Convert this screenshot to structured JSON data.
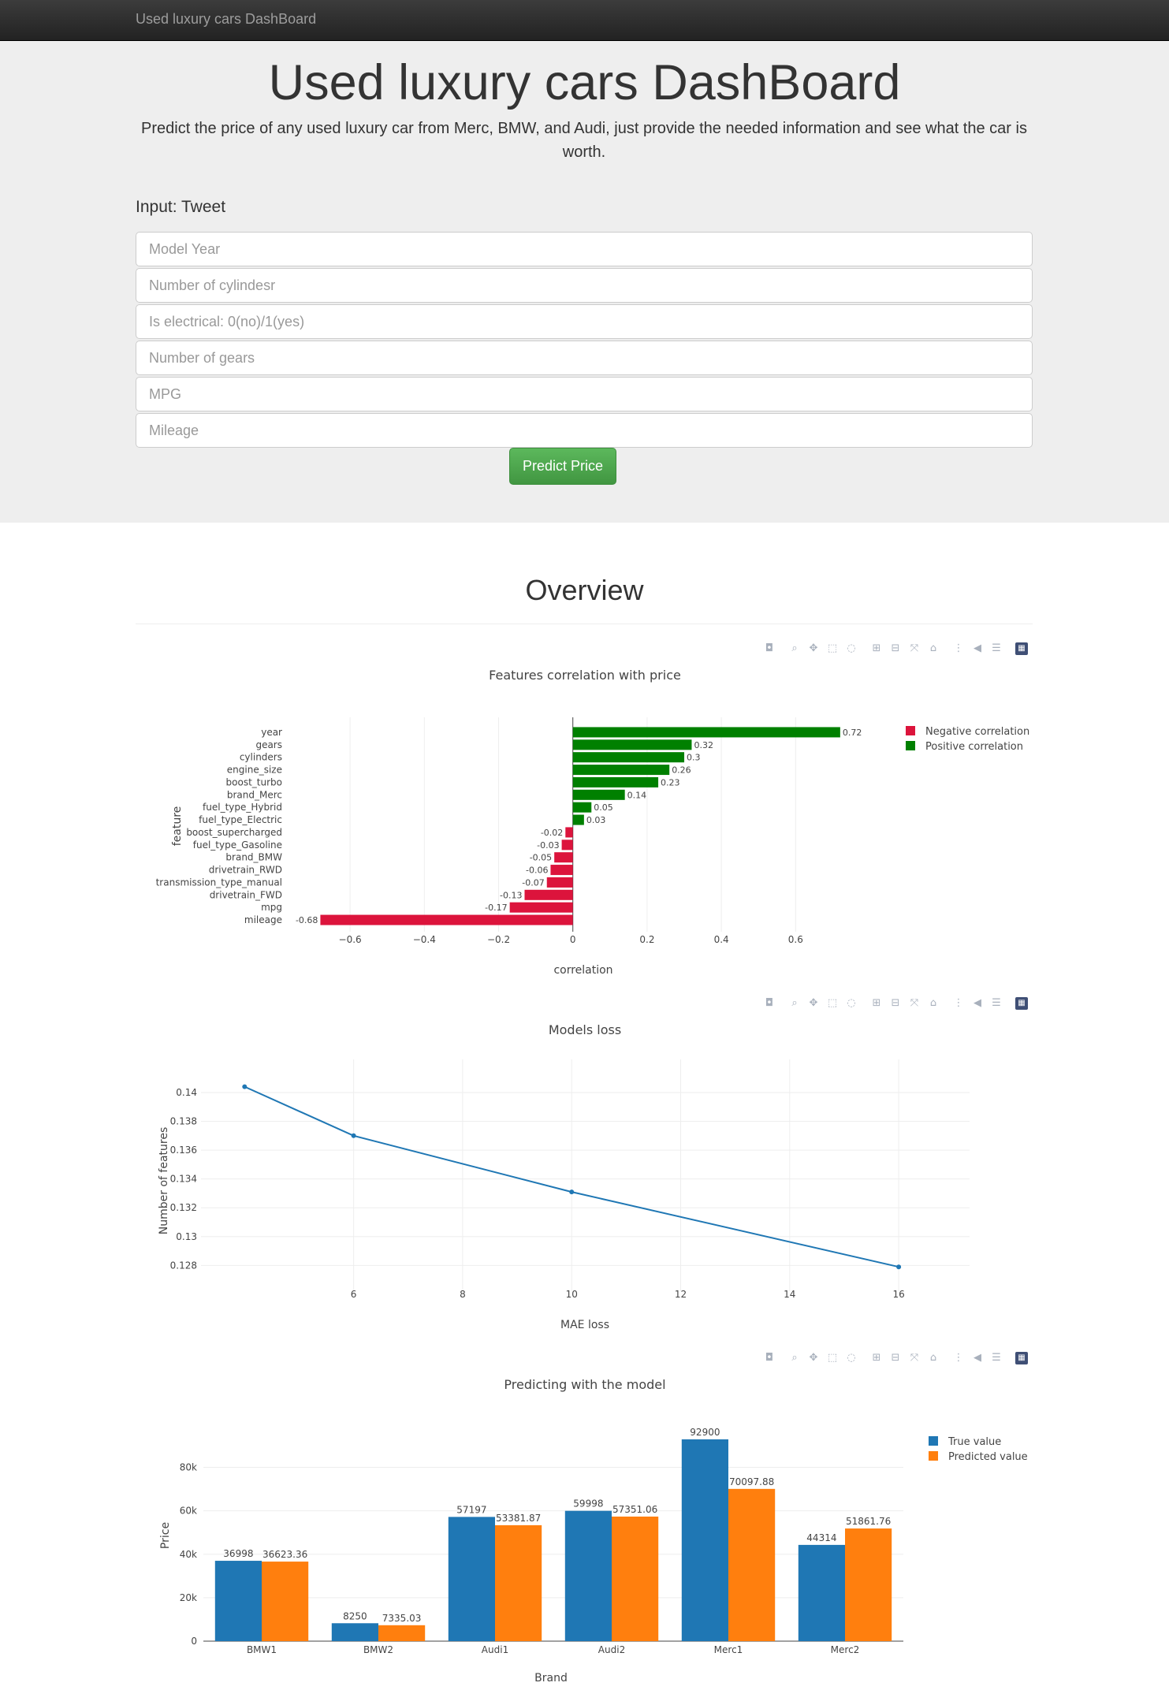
{
  "navbar": {
    "brand": "Used luxury cars DashBoard"
  },
  "header": {
    "title": "Used luxury cars DashBoard",
    "lead": "Predict the price of any used luxury car from Merc, BMW, and Audi, just provide the needed information and see what the car is worth."
  },
  "form": {
    "title": "Input: Tweet",
    "fields": [
      {
        "placeholder": "Model Year",
        "value": ""
      },
      {
        "placeholder": "Number of cylindesr",
        "value": ""
      },
      {
        "placeholder": "Is electrical: 0(no)/1(yes)",
        "value": ""
      },
      {
        "placeholder": "Number of gears",
        "value": ""
      },
      {
        "placeholder": "MPG",
        "value": ""
      },
      {
        "placeholder": "Mileage",
        "value": ""
      }
    ],
    "submit_label": "Predict Price"
  },
  "overview": {
    "title": "Overview"
  },
  "modebar_icons": [
    "camera-icon",
    "zoom-icon",
    "pan-icon",
    "box-select-icon",
    "lasso-icon",
    "zoom-in-icon",
    "zoom-out-icon",
    "autoscale-icon",
    "reset-axes-icon",
    "spike-lines-icon",
    "hover-closest-icon",
    "hover-compare-icon",
    "plotly-logo-icon"
  ],
  "colors": {
    "negative": "#dc143c",
    "positive": "#008000",
    "line": "#1f77b4",
    "true_value": "#1f77b4",
    "predicted_value": "#ff7f0e"
  },
  "chart_data": [
    {
      "type": "bar",
      "orientation": "horizontal",
      "title": "Features correlation with price",
      "xlabel": "correlation",
      "ylabel": "feature",
      "xlim": [
        -0.7,
        0.75
      ],
      "xticks": [
        "−0.6",
        "−0.4",
        "−0.2",
        "0",
        "0.2",
        "0.4",
        "0.6"
      ],
      "xtick_values": [
        -0.6,
        -0.4,
        -0.2,
        0,
        0.2,
        0.4,
        0.6
      ],
      "categories": [
        "year",
        "gears",
        "cylinders",
        "engine_size",
        "boost_turbo",
        "brand_Merc",
        "fuel_type_Hybrid",
        "fuel_type_Electric",
        "boost_supercharged",
        "fuel_type_Gasoline",
        "brand_BMW",
        "drivetrain_RWD",
        "transmission_type_manual",
        "drivetrain_FWD",
        "mpg",
        "mileage"
      ],
      "values": [
        0.72,
        0.32,
        0.3,
        0.26,
        0.23,
        0.14,
        0.05,
        0.03,
        -0.02,
        -0.03,
        -0.05,
        -0.06,
        -0.07,
        -0.13,
        -0.17,
        -0.68
      ],
      "labels": [
        "0.72",
        "0.32",
        "0.3",
        "0.26",
        "0.23",
        "0.14",
        "0.05",
        "0.03",
        "-0.02",
        "-0.03",
        "-0.05",
        "-0.06",
        "-0.07",
        "-0.13",
        "-0.17",
        "-0.68"
      ],
      "legend": [
        "Negative correlation",
        "Positive correlation"
      ],
      "legend_position": "top-right",
      "grid": true
    },
    {
      "type": "line",
      "title": "Models loss",
      "xlabel": "MAE loss",
      "ylabel": "Number of features",
      "x": [
        4,
        6,
        10,
        16
      ],
      "y": [
        0.1404,
        0.137,
        0.1331,
        0.1279
      ],
      "xlim": [
        3.2,
        17.3
      ],
      "ylim": [
        0.1272,
        0.1412
      ],
      "xticks": [
        "6",
        "8",
        "10",
        "12",
        "14",
        "16"
      ],
      "xtick_values": [
        6,
        8,
        10,
        12,
        14,
        16
      ],
      "yticks": [
        "0.128",
        "0.13",
        "0.132",
        "0.134",
        "0.136",
        "0.138",
        "0.14"
      ],
      "ytick_values": [
        0.128,
        0.13,
        0.132,
        0.134,
        0.136,
        0.138,
        0.14
      ],
      "grid": true
    },
    {
      "type": "bar",
      "title": "Predicting with the model",
      "xlabel": "Brand",
      "ylabel": "Price",
      "categories": [
        "BMW1",
        "BMW2",
        "Audi1",
        "Audi2",
        "Merc1",
        "Merc2"
      ],
      "series": [
        {
          "name": "True value",
          "values": [
            36998,
            8250,
            57197,
            59998,
            92900,
            44314
          ],
          "labels": [
            "36998",
            "8250",
            "57197",
            "59998",
            "92900",
            "44314"
          ]
        },
        {
          "name": "Predicted value",
          "values": [
            36623.36,
            7335.03,
            53381.87,
            57351.06,
            70097.88,
            51861.76
          ],
          "labels": [
            "36623.36",
            "7335.03",
            "53381.87",
            "57351.06",
            "70097.88",
            "51861.76"
          ]
        }
      ],
      "ylim": [
        0,
        92900
      ],
      "yticks": [
        "0",
        "20k",
        "40k",
        "60k",
        "80k"
      ],
      "ytick_values": [
        0,
        20000,
        40000,
        60000,
        80000
      ],
      "legend_position": "top-right",
      "grid": true
    }
  ]
}
